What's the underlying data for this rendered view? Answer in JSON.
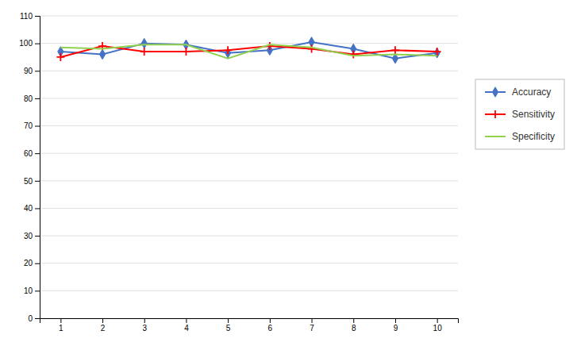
{
  "chart_data": {
    "type": "line",
    "x": [
      1,
      2,
      3,
      4,
      5,
      6,
      7,
      8,
      9,
      10
    ],
    "xlim": [
      0.5,
      10.5
    ],
    "xticks": [
      1,
      2,
      3,
      4,
      5,
      6,
      7,
      8,
      9,
      10
    ],
    "ylim": [
      0,
      110
    ],
    "yticks": [
      0,
      10,
      20,
      30,
      40,
      50,
      60,
      70,
      80,
      90,
      100,
      110
    ],
    "grid": true,
    "legend": "right",
    "series": [
      {
        "name": "Accuracy",
        "color": "#4472C4",
        "marker": "diamond",
        "values": [
          97.0,
          96.0,
          100.0,
          99.5,
          96.5,
          97.5,
          100.5,
          98.0,
          94.5,
          96.5
        ]
      },
      {
        "name": "Sensitivity",
        "color": "#FF0000",
        "marker": "plus",
        "values": [
          95.0,
          99.0,
          97.0,
          97.0,
          97.5,
          99.0,
          98.0,
          96.0,
          97.5,
          97.0
        ]
      },
      {
        "name": "Specificity",
        "color": "#92D050",
        "marker": "none",
        "values": [
          98.5,
          98.0,
          99.5,
          99.5,
          94.5,
          99.5,
          98.5,
          95.5,
          96.0,
          95.5
        ]
      }
    ]
  }
}
